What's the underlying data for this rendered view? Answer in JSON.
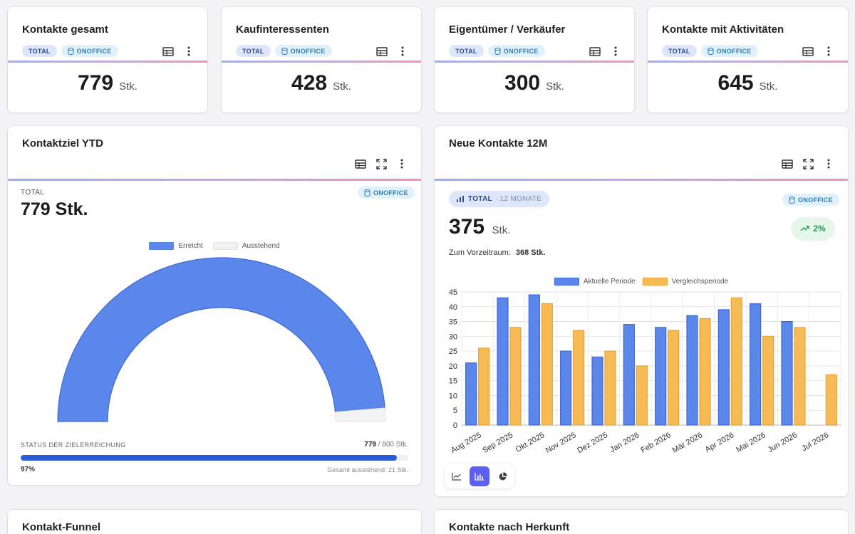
{
  "kpis": [
    {
      "title": "Kontakte gesamt",
      "badge_total": "TOTAL",
      "badge_source": "ONOFFICE",
      "value": "779",
      "unit": "Stk."
    },
    {
      "title": "Kaufinteressenten",
      "badge_total": "TOTAL",
      "badge_source": "ONOFFICE",
      "value": "428",
      "unit": "Stk."
    },
    {
      "title": "Eigentümer / Verkäufer",
      "badge_total": "TOTAL",
      "badge_source": "ONOFFICE",
      "value": "300",
      "unit": "Stk."
    },
    {
      "title": "Kontakte mit Aktivitäten",
      "badge_total": "TOTAL",
      "badge_source": "ONOFFICE",
      "value": "645",
      "unit": "Stk."
    }
  ],
  "goal": {
    "title": "Kontaktziel YTD",
    "label": "TOTAL",
    "value": "779 Stk.",
    "source": "ONOFFICE",
    "legend": [
      "Erreicht",
      "Ausstehend"
    ],
    "status_label": "STATUS DER ZIELERREICHUNG",
    "progress_current": "779",
    "progress_suffix": "/ 800 Stk.",
    "progress_percent": "97%",
    "progress_fraction": 0.97,
    "remaining": "Gesamt ausstehend: 21 Stk."
  },
  "newcontacts": {
    "title": "Neue Kontakte 12M",
    "pill_total": "TOTAL",
    "pill_period": "· 12 MONATE",
    "source": "ONOFFICE",
    "value": "375",
    "unit": "Stk.",
    "trend": "2%",
    "compare_label": "Zum Vorzeitraum:",
    "compare_value": "368 Stk."
  },
  "bottom": {
    "left_title": "Kontakt-Funnel",
    "right_title": "Kontakte nach Herkunft"
  },
  "colors": {
    "accent_blue": "#5b86ea",
    "accent_orange": "#f7bb55",
    "badge_total_bg": "#dde6fb",
    "badge_source_bg": "#e0f1fb",
    "trend_green": "#2c9a56",
    "progress_blue": "#2a5ed6"
  },
  "chart_data": [
    {
      "type": "pie",
      "categories": [
        "Erreicht",
        "Ausstehend"
      ],
      "values": [
        779,
        21
      ]
    },
    {
      "type": "bar",
      "categories": [
        "Aug 2025",
        "Sep 2025",
        "Okt 2025",
        "Nov 2025",
        "Dez 2025",
        "Jan 2026",
        "Feb 2026",
        "Mär 2026",
        "Apr 2026",
        "Mai 2026",
        "Jun 2026",
        "Jul 2026"
      ],
      "series": [
        {
          "name": "Aktuelle Periode",
          "color": "#5b86ea",
          "values": [
            21,
            43,
            44,
            25,
            23,
            34,
            33,
            37,
            39,
            41,
            35,
            null
          ]
        },
        {
          "name": "Vergleichsperiode",
          "color": "#f7bb55",
          "values": [
            26,
            33,
            41,
            32,
            25,
            20,
            32,
            36,
            43,
            30,
            33,
            17
          ]
        }
      ],
      "ylim": [
        0,
        45
      ],
      "yticks": [
        0,
        5,
        10,
        15,
        20,
        25,
        30,
        35,
        40,
        45
      ],
      "grid": true,
      "legend": "top"
    }
  ]
}
